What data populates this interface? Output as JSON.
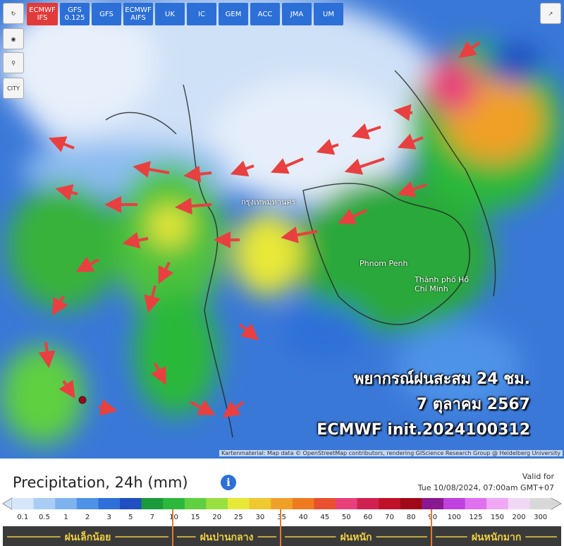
{
  "toolbar": {
    "models": [
      "ECMWF IFS",
      "GFS 0.125",
      "GFS",
      "ECMWF AIFS",
      "UK",
      "IC",
      "GEM",
      "ACC",
      "JMA",
      "UM"
    ],
    "city_button": "CITY"
  },
  "map": {
    "places": [
      "Phnom Penh",
      "Thành phố Hồ Chí Minh",
      "กรุงเทพมหานคร"
    ],
    "overlay": [
      "พยากรณ์ฝนสะสม 24 ชม.",
      "7 ตุลาคม 2567",
      "ECMWF init.2024100312"
    ],
    "attribution": "Kartenmaterial: Map data © OpenStreetMap contributors, rendering GIScience Research Group @ Heidelberg University"
  },
  "legend": {
    "title": "Precipitation, 24h (mm)",
    "valid_label": "Valid for",
    "valid_time": "Tue 10/08/2024, 07:00am GMT+07",
    "scale": [
      {
        "label": "0.1",
        "color": "#d6e6fa"
      },
      {
        "label": "0.5",
        "color": "#a9cdf7"
      },
      {
        "label": "1",
        "color": "#7fb3f0"
      },
      {
        "label": "2",
        "color": "#4d93e8"
      },
      {
        "label": "3",
        "color": "#2f70d8"
      },
      {
        "label": "5",
        "color": "#1f4fc0"
      },
      {
        "label": "7",
        "color": "#1a9a3a"
      },
      {
        "label": "10",
        "color": "#2cb83a"
      },
      {
        "label": "15",
        "color": "#5fd040"
      },
      {
        "label": "20",
        "color": "#9ae040"
      },
      {
        "label": "25",
        "color": "#e8e838"
      },
      {
        "label": "30",
        "color": "#f0c830"
      },
      {
        "label": "35",
        "color": "#f0a028"
      },
      {
        "label": "40",
        "color": "#f07a20"
      },
      {
        "label": "45",
        "color": "#e85030"
      },
      {
        "label": "50",
        "color": "#e8407a"
      },
      {
        "label": "60",
        "color": "#d02050"
      },
      {
        "label": "70",
        "color": "#c0102a"
      },
      {
        "label": "80",
        "color": "#a00818"
      },
      {
        "label": "90",
        "color": "#8a1890"
      },
      {
        "label": "100",
        "color": "#c040e0"
      },
      {
        "label": "125",
        "color": "#e070f0"
      },
      {
        "label": "150",
        "color": "#f0a8f5"
      },
      {
        "label": "200",
        "color": "#f0d8f5"
      },
      {
        "label": "300",
        "color": "#d8d8d8"
      }
    ],
    "categories": [
      "ฝนเล็กน้อย",
      "ฝนปานกลาง",
      "ฝนหนัก",
      "ฝนหนักมาก"
    ]
  }
}
